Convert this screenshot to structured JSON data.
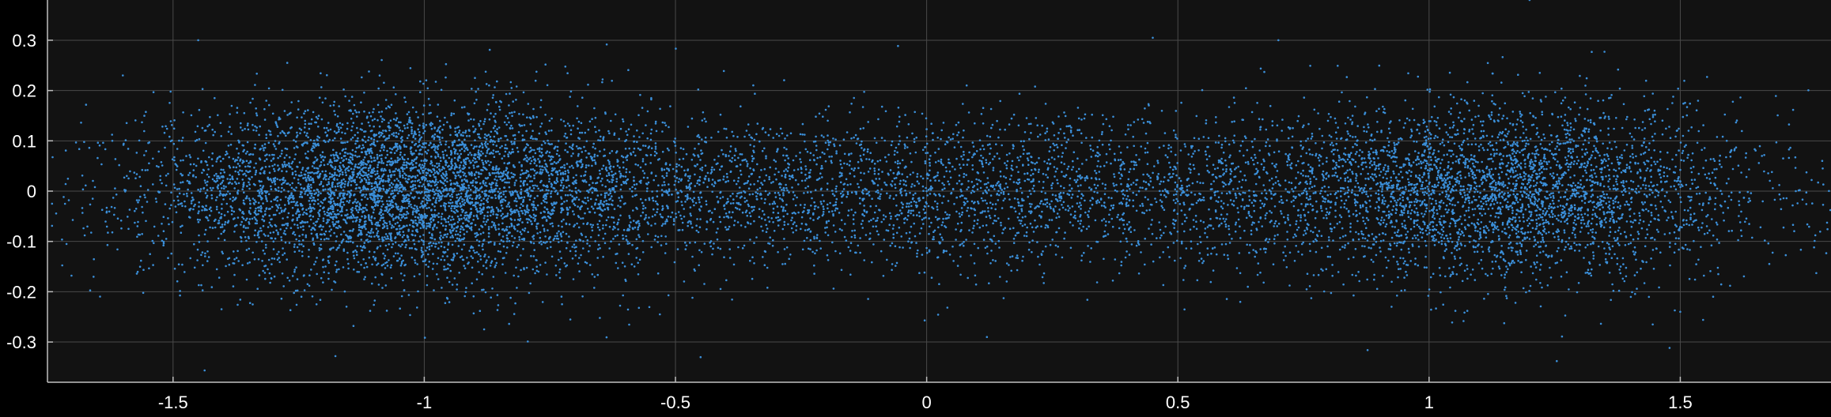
{
  "chart_data": {
    "type": "scatter",
    "title": "",
    "xlabel": "",
    "ylabel": "",
    "xlim": [
      -1.75,
      1.8
    ],
    "ylim": [
      -0.38,
      0.38
    ],
    "grid": true,
    "colors": {
      "background": "#000000",
      "axes_background": "#121212",
      "grid": "#4a4a4a",
      "axis": "#bfbfbf",
      "tick_label": "#ffffff",
      "marker": "#3b8fd9"
    },
    "x_ticks": [
      -1.5,
      -1,
      -0.5,
      0,
      0.5,
      1,
      1.5
    ],
    "x_tick_labels": [
      "-1.5",
      "-1",
      "-0.5",
      "0",
      "0.5",
      "1",
      "1.5"
    ],
    "y_ticks": [
      0.3,
      0.2,
      0.1,
      0,
      -0.1,
      -0.2,
      -0.3
    ],
    "y_tick_labels": [
      "0.3",
      "0.2",
      "0.1",
      "0",
      "-0.1",
      "-0.2",
      "-0.3"
    ],
    "series": [
      {
        "marker": "dot",
        "point_count_estimate": 12000,
        "distribution": "Gaussian clusters along x; y centered near 0 with spread about 0.08",
        "clusters": [
          {
            "x_center": -1.05,
            "x_spread": 0.25,
            "y_center": 0.0,
            "y_spread": 0.085,
            "weight": 0.42
          },
          {
            "x_center": -0.35,
            "x_spread": 0.35,
            "y_center": 0.0,
            "y_spread": 0.075,
            "weight": 0.14
          },
          {
            "x_center": 0.35,
            "x_spread": 0.35,
            "y_center": 0.0,
            "y_spread": 0.075,
            "weight": 0.14
          },
          {
            "x_center": 1.15,
            "x_spread": 0.25,
            "y_center": 0.0,
            "y_spread": 0.085,
            "weight": 0.3
          }
        ],
        "sample_points": [
          [
            -1.05,
            0.0
          ],
          [
            -1.0,
            0.05
          ],
          [
            -0.95,
            -0.05
          ],
          [
            -1.2,
            0.1
          ],
          [
            -1.3,
            -0.1
          ],
          [
            -0.5,
            0.02
          ],
          [
            0.0,
            0.0
          ],
          [
            0.5,
            -0.02
          ],
          [
            1.0,
            0.0
          ],
          [
            1.2,
            0.05
          ],
          [
            1.4,
            -0.05
          ],
          [
            0.45,
            0.305
          ],
          [
            -0.45,
            -0.33
          ],
          [
            1.2,
            0.38
          ],
          [
            -1.45,
            0.3
          ],
          [
            1.73,
            0.0
          ],
          [
            0.12,
            -0.29
          ],
          [
            -1.6,
            0.23
          ],
          [
            1.5,
            -0.24
          ],
          [
            0.7,
            0.3
          ]
        ]
      }
    ]
  }
}
